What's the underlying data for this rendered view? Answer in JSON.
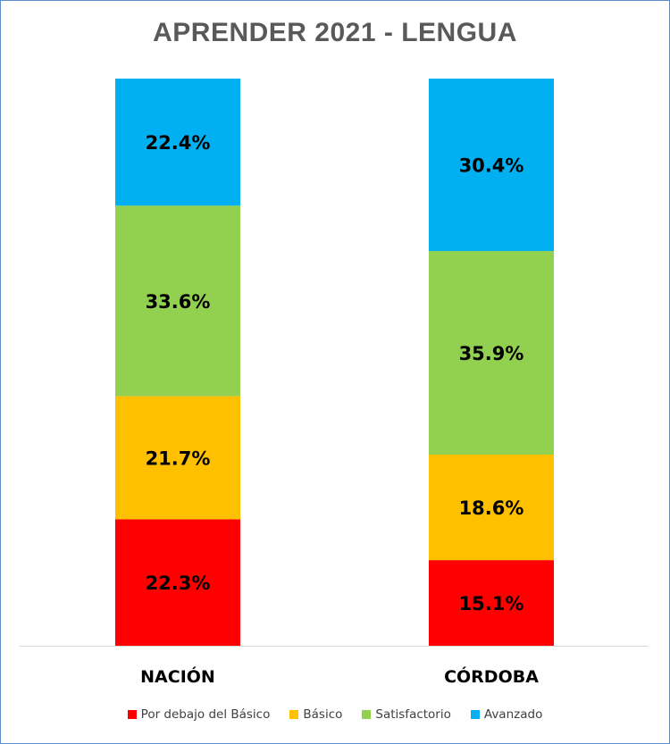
{
  "chart_data": {
    "type": "bar",
    "stacked": true,
    "title": "APRENDER 2021 - LENGUA",
    "categories": [
      "NACIÓN",
      "CÓRDOBA"
    ],
    "series": [
      {
        "name": "Por debajo del Básico",
        "color": "#ff0000",
        "values": [
          22.3,
          15.1
        ],
        "labels": [
          "22.3%",
          "15.1%"
        ]
      },
      {
        "name": "Básico",
        "color": "#ffc000",
        "values": [
          21.7,
          18.6
        ],
        "labels": [
          "21.7%",
          "18.6%"
        ]
      },
      {
        "name": "Satisfactorio",
        "color": "#92d050",
        "values": [
          33.6,
          35.9
        ],
        "labels": [
          "33.6%",
          "35.9%"
        ]
      },
      {
        "name": "Avanzado",
        "color": "#00b0f0",
        "values": [
          22.4,
          30.4
        ],
        "labels": [
          "22.4%",
          "30.4%"
        ]
      }
    ],
    "ylim": [
      0,
      100
    ],
    "legend_position": "bottom",
    "grid": false
  }
}
